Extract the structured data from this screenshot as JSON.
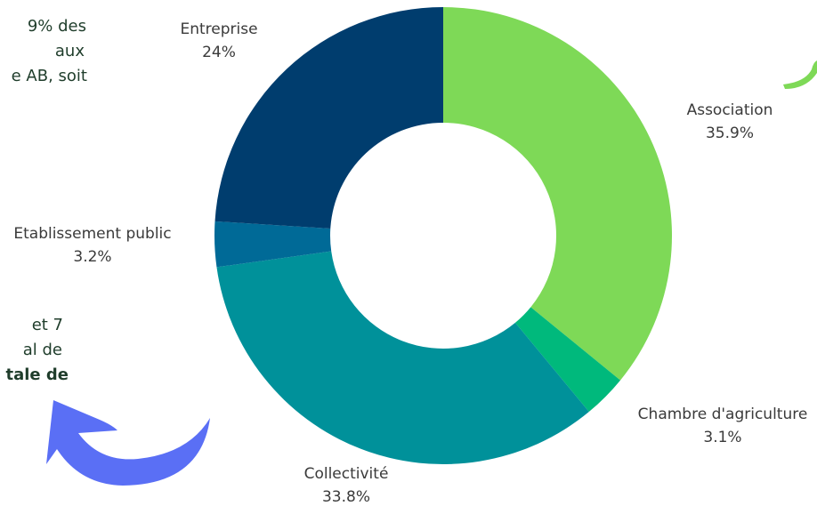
{
  "chart_data": {
    "type": "donut",
    "categories": [
      "Association",
      "Chambre d'agriculture",
      "Collectivité",
      "Etablissement public",
      "Entreprise"
    ],
    "values": [
      35.9,
      3.1,
      33.8,
      3.2,
      24
    ],
    "value_labels": [
      "35.9%",
      "3.1%",
      "33.8%",
      "3.2%",
      "24%"
    ],
    "colors": [
      "#7ed957",
      "#00b97c",
      "#00919a",
      "#006a97",
      "#003d6e"
    ]
  },
  "side_text": [
    "9% des",
    "aux",
    "e AB, soit",
    "et 7",
    "al de",
    "tale de"
  ]
}
